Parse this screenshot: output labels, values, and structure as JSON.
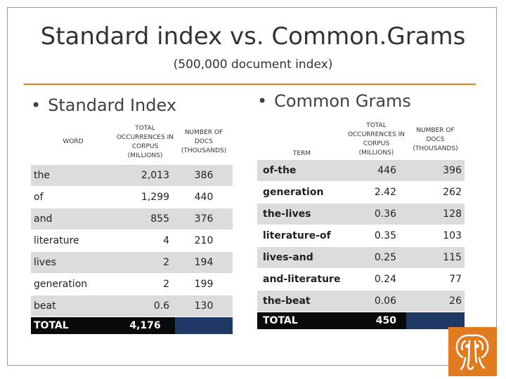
{
  "title": "Standard index vs. Common.Grams",
  "subtitle": "(500,000 document index)",
  "left": {
    "heading": "Standard Index",
    "headers": [
      "WORD",
      "TOTAL OCCURRENCES IN CORPUS (MILLIONS)",
      "NUMBER OF DOCS (THOUSANDS)"
    ],
    "rows": [
      {
        "word": "the",
        "occ": "2,013",
        "docs": "386"
      },
      {
        "word": "of",
        "occ": "1,299",
        "docs": "440"
      },
      {
        "word": "and",
        "occ": "855",
        "docs": "376"
      },
      {
        "word": "literature",
        "occ": "4",
        "docs": "210"
      },
      {
        "word": "lives",
        "occ": "2",
        "docs": "194"
      },
      {
        "word": "generation",
        "occ": "2",
        "docs": "199"
      },
      {
        "word": "beat",
        "occ": "0.6",
        "docs": "130"
      }
    ],
    "total_label": "TOTAL",
    "total_occ": "4,176"
  },
  "right": {
    "heading": "Common Grams",
    "headers": [
      "TERM",
      "TOTAL OCCURRENCES IN CORPUS (MILLIONS)",
      "NUMBER OF DOCS (THOUSANDS)"
    ],
    "rows": [
      {
        "term": "of-the",
        "occ": "446",
        "docs": "396"
      },
      {
        "term": "generation",
        "occ": "2.42",
        "docs": "262"
      },
      {
        "term": "the-lives",
        "occ": "0.36",
        "docs": "128"
      },
      {
        "term": "literature-of",
        "occ": "0.35",
        "docs": "103"
      },
      {
        "term": "lives-and",
        "occ": "0.25",
        "docs": "115"
      },
      {
        "term": "and-literature",
        "occ": "0.24",
        "docs": "77"
      },
      {
        "term": "the-beat",
        "occ": "0.06",
        "docs": "26"
      }
    ],
    "total_label": "TOTAL",
    "total_occ": "450"
  },
  "colors": {
    "accent": "#e07b1f",
    "band": "#dcdcdc",
    "total_bg": "#0a0a0a",
    "total_blank": "#1f3864"
  },
  "logo_icon": "elephant-icon"
}
